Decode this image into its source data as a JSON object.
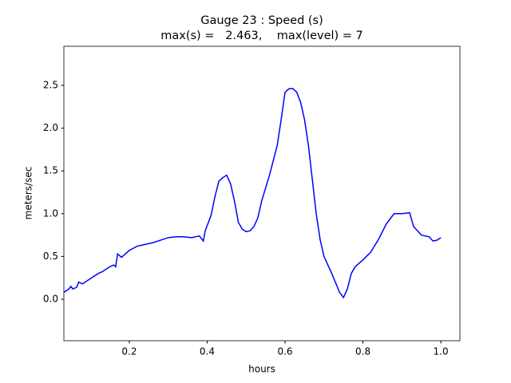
{
  "chart_data": {
    "type": "line",
    "title": [
      "Gauge 23 : Speed (s)",
      "max(s) =   2.463,    max(level) = 7"
    ],
    "x_label": "hours",
    "y_label": "meters/sec",
    "x": [
      0.032,
      0.045,
      0.05,
      0.055,
      0.065,
      0.07,
      0.08,
      0.1,
      0.12,
      0.13,
      0.15,
      0.16,
      0.165,
      0.17,
      0.18,
      0.19,
      0.2,
      0.22,
      0.24,
      0.26,
      0.28,
      0.3,
      0.32,
      0.34,
      0.36,
      0.38,
      0.39,
      0.395,
      0.41,
      0.42,
      0.43,
      0.44,
      0.45,
      0.46,
      0.47,
      0.48,
      0.49,
      0.5,
      0.51,
      0.52,
      0.53,
      0.54,
      0.56,
      0.58,
      0.59,
      0.6,
      0.61,
      0.62,
      0.63,
      0.64,
      0.65,
      0.66,
      0.67,
      0.68,
      0.69,
      0.7,
      0.72,
      0.74,
      0.75,
      0.76,
      0.77,
      0.78,
      0.8,
      0.82,
      0.84,
      0.86,
      0.88,
      0.9,
      0.92,
      0.93,
      0.94,
      0.95,
      0.97,
      0.98,
      0.99,
      1.0
    ],
    "series": [
      {
        "name": "s",
        "color": "#0000ff",
        "values": [
          0.08,
          0.12,
          0.15,
          0.12,
          0.14,
          0.2,
          0.18,
          0.24,
          0.3,
          0.32,
          0.38,
          0.4,
          0.38,
          0.53,
          0.49,
          0.53,
          0.57,
          0.62,
          0.64,
          0.66,
          0.69,
          0.72,
          0.73,
          0.73,
          0.72,
          0.74,
          0.68,
          0.8,
          0.98,
          1.2,
          1.38,
          1.42,
          1.45,
          1.35,
          1.15,
          0.9,
          0.82,
          0.79,
          0.8,
          0.85,
          0.95,
          1.15,
          1.45,
          1.8,
          2.1,
          2.42,
          2.46,
          2.463,
          2.42,
          2.3,
          2.1,
          1.8,
          1.4,
          1.0,
          0.7,
          0.5,
          0.3,
          0.08,
          0.02,
          0.12,
          0.3,
          0.38,
          0.46,
          0.55,
          0.7,
          0.88,
          1.0,
          1.0,
          1.01,
          0.85,
          0.8,
          0.75,
          0.73,
          0.68,
          0.69,
          0.72
        ]
      }
    ],
    "xlim": [
      0.032,
      1.049
    ],
    "ylim": [
      -0.485,
      2.957
    ],
    "xticks": [
      0.2,
      0.4,
      0.6,
      0.8,
      {
        "value": 1.0,
        "label": "1.0"
      }
    ],
    "yticks": [
      {
        "value": 0,
        "label": "0.0"
      },
      0.5,
      {
        "value": 1.0,
        "label": "1.0"
      },
      1.5,
      {
        "value": 2.0,
        "label": "2.0"
      },
      2.5
    ],
    "grid": false
  }
}
